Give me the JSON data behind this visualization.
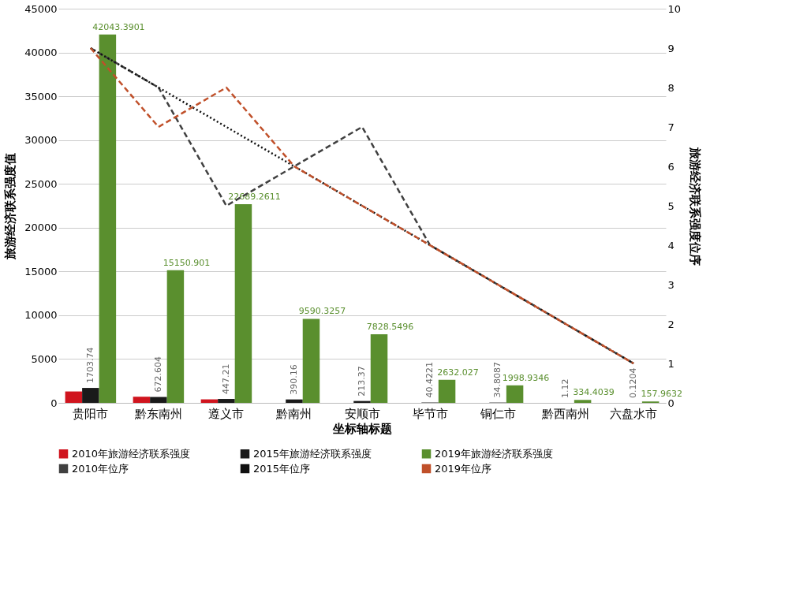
{
  "chart_data": {
    "type": "bar",
    "xlabel": "坐标轴标题",
    "ylabel": "旅游经济联系强度值",
    "y2label": "旅游经济联系强度位序",
    "categories": [
      "贵阳市",
      "黔东南州",
      "遵义市",
      "黔南州",
      "安顺市",
      "毕节市",
      "铜仁市",
      "黔西南州",
      "六盘水市"
    ],
    "series": [
      {
        "name": "2010年旅游经济联系强度",
        "color": "#d0141e",
        "values": [
          1300,
          700,
          400,
          null,
          null,
          null,
          null,
          null,
          null
        ]
      },
      {
        "name": "2015年旅游经济联系强度",
        "color": "#1a1a1a",
        "values": [
          1703.74,
          672.604,
          447.21,
          390.16,
          213.37,
          40.4221,
          34.8087,
          1.12,
          0.1204
        ],
        "value_labels": [
          "1703.74",
          "672.604",
          "447.21",
          "390.16",
          "213.37",
          "40.4221",
          "34.8087",
          "1.12",
          "0.1204"
        ]
      },
      {
        "name": "2019年旅游经济联系强度",
        "color": "#5a8f2e",
        "values": [
          42043.3901,
          15150.901,
          22689.2611,
          9590.3257,
          7828.5496,
          2632.027,
          1998.9346,
          334.4039,
          157.9632
        ],
        "value_labels": [
          "42043.3901",
          "15150.901",
          "22689.2611",
          "9590.3257",
          "7828.5496",
          "2632.027",
          "1998.9346",
          "334.4039",
          "157.9632"
        ]
      },
      {
        "name": "2010年位序",
        "type": "line",
        "axis": "y2",
        "color": "#404040",
        "line_style": "dashed",
        "values": [
          9,
          8,
          5,
          6,
          7,
          4,
          3,
          2,
          1
        ]
      },
      {
        "name": "2015年位序",
        "type": "line",
        "axis": "y2",
        "color": "#111111",
        "line_style": "dotted",
        "values": [
          9,
          8,
          7,
          6,
          5,
          4,
          3,
          2,
          1
        ]
      },
      {
        "name": "2019年位序",
        "type": "line",
        "axis": "y2",
        "color": "#c0502a",
        "line_style": "dashed",
        "values": [
          9,
          7,
          8,
          6,
          5,
          4,
          3,
          2,
          1
        ]
      }
    ],
    "ylim": [
      0,
      45000
    ],
    "yticks": [
      0,
      5000,
      10000,
      15000,
      20000,
      25000,
      30000,
      35000,
      40000,
      45000
    ],
    "y2lim": [
      0,
      10
    ],
    "y2ticks": [
      0,
      1,
      2,
      3,
      4,
      5,
      6,
      7,
      8,
      9,
      10
    ],
    "grid": "y",
    "legend": "bottom"
  }
}
